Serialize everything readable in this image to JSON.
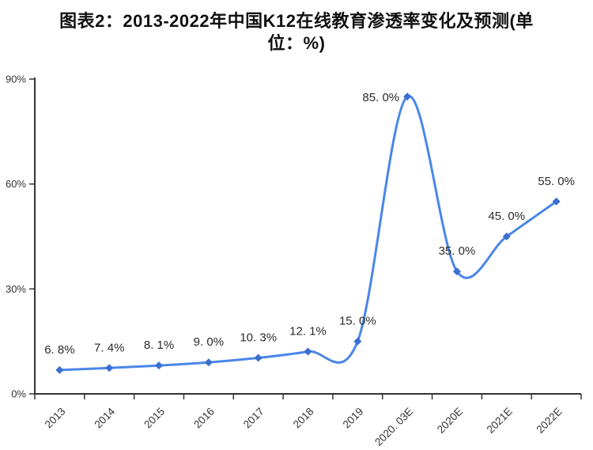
{
  "title": {
    "line1": "图表2：2013-2022年中国K12在线教育渗透率变化及预测(单",
    "line2": "位：%)",
    "full": "图表2：2013-2022年中国K12在线教育渗透率变化及预测(单位：%)"
  },
  "chart_data": {
    "type": "line",
    "title": "图表2：2013-2022年中国K12在线教育渗透率变化及预测(单位：%)",
    "categories": [
      "2013",
      "2014",
      "2015",
      "2016",
      "2017",
      "2018",
      "2019",
      "2020. 03E",
      "2020E",
      "2021E",
      "2022E"
    ],
    "values": [
      6.8,
      7.4,
      8.1,
      9.0,
      10.3,
      12.1,
      15.0,
      85.0,
      35.0,
      45.0,
      55.0
    ],
    "point_labels": [
      "6. 8%",
      "7. 4%",
      "8. 1%",
      "9. 0%",
      "10. 3%",
      "12. 1%",
      "15. 0%",
      "85. 0%",
      "35. 0%",
      "45. 0%",
      "55. 0%"
    ],
    "unit": "%",
    "xlabel": "",
    "ylabel": "",
    "ylim": [
      0,
      90
    ],
    "y_tick_values": [
      0,
      30,
      60,
      90
    ],
    "y_tick_labels": [
      "0%",
      "30%",
      "60%",
      "90%"
    ],
    "grid": false,
    "legend_position": "none",
    "smooth": true,
    "line_color": "#4a86e8",
    "marker_color": "#3b6fd1",
    "marker_shape": "diamond",
    "axis_color": "#333333",
    "data_label_color": "#2b2b2b"
  }
}
